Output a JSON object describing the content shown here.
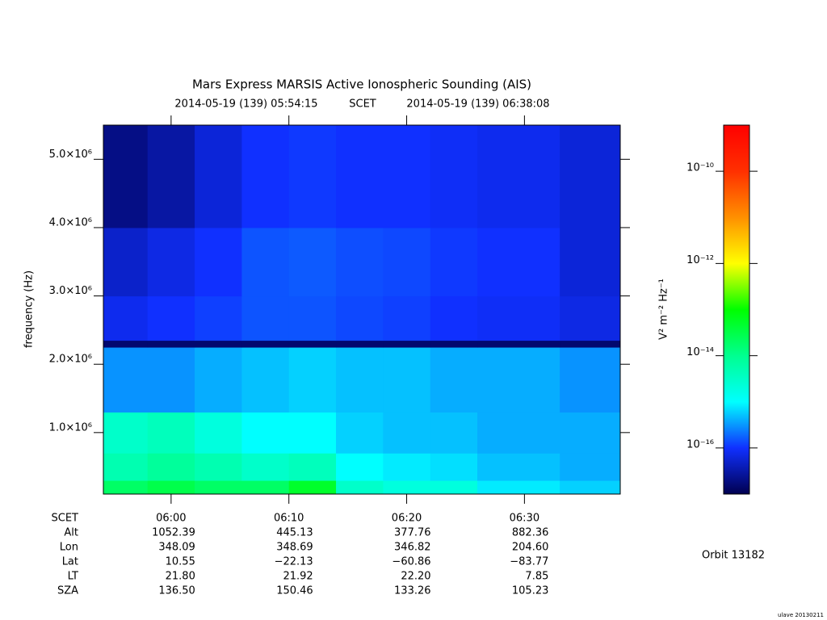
{
  "chart_data": {
    "type": "heatmap",
    "title": "Mars Express MARSIS Active Ionospheric Sounding (AIS)",
    "start_label": "2014-05-19 (139) 05:54:15",
    "time_system": "SCET",
    "end_label": "2014-05-19 (139) 06:38:08",
    "y_label": "frequency (Hz)",
    "colorbar_label": "V² m⁻² Hz⁻¹",
    "orbit": "Orbit 13182",
    "credit": "ulave 20130211",
    "xlim": [
      "05:54:15",
      "06:38:08"
    ],
    "xticks": [
      "06:00",
      "06:10",
      "06:20",
      "06:30"
    ],
    "ylim": [
      100000,
      5500000
    ],
    "yticks": [
      {
        "value": 1000000,
        "label": "1.0×10⁶"
      },
      {
        "value": 2000000,
        "label": "2.0×10⁶"
      },
      {
        "value": 3000000,
        "label": "3.0×10⁶"
      },
      {
        "value": 4000000,
        "label": "4.0×10⁶"
      },
      {
        "value": 5000000,
        "label": "5.0×10⁶"
      }
    ],
    "zlim": [
      1e-17,
      1e-09
    ],
    "zscale": "log",
    "zticks": [
      {
        "value": 1e-16,
        "label": "10⁻¹⁶"
      },
      {
        "value": 1e-14,
        "label": "10⁻¹⁴"
      },
      {
        "value": 1e-12,
        "label": "10⁻¹²"
      },
      {
        "value": 1e-10,
        "label": "10⁻¹⁰"
      }
    ],
    "colormap": [
      "#000050",
      "#1030ff",
      "#00ffff",
      "#00ff90",
      "#00ff00",
      "#ffff00",
      "#ff9000",
      "#ff3000",
      "#ff0000"
    ],
    "time_edges": [
      "05:54:15",
      "05:58:00",
      "06:02:00",
      "06:06:00",
      "06:10:00",
      "06:14:00",
      "06:18:00",
      "06:22:00",
      "06:26:00",
      "06:33:00",
      "06:38:08"
    ],
    "freq_edges": [
      100000,
      300000,
      700000,
      1300000,
      2250000,
      2350000,
      3000000,
      4000000,
      5500000
    ],
    "z": [
      [
        2e-14,
        3e-14,
        2e-14,
        2e-14,
        5e-14,
        3e-15,
        2e-15,
        2e-15,
        8e-16,
        6e-16
      ],
      [
        5e-15,
        8e-15,
        5e-15,
        3e-15,
        4e-15,
        1e-15,
        8e-16,
        7e-16,
        5e-16,
        4e-16
      ],
      [
        3e-15,
        4e-15,
        2e-15,
        1e-15,
        1e-15,
        6e-16,
        5e-16,
        5e-16,
        4e-16,
        4e-16
      ],
      [
        3e-16,
        3e-16,
        4e-16,
        5e-16,
        6e-16,
        5e-16,
        5e-16,
        4e-16,
        4e-16,
        3e-16
      ],
      [
        1.5e-17,
        1.5e-17,
        1.5e-17,
        1.5e-17,
        1.5e-17,
        1.5e-17,
        1.5e-17,
        1.5e-17,
        1.5e-17,
        1.5e-17
      ],
      [
        8e-17,
        1e-16,
        1.2e-16,
        1.5e-16,
        1.5e-16,
        1.3e-16,
        1.2e-16,
        1e-16,
        9e-17,
        7e-17
      ],
      [
        5e-17,
        7e-17,
        1e-16,
        1.5e-16,
        1.6e-16,
        1.4e-16,
        1.3e-16,
        1.1e-16,
        1e-16,
        6e-17
      ],
      [
        2e-17,
        3e-17,
        6e-17,
        1e-16,
        1.1e-16,
        1e-16,
        1e-16,
        9e-17,
        8e-17,
        6e-17
      ]
    ],
    "ephemeris": {
      "header": "SCET",
      "rows": [
        {
          "label": "Alt",
          "values": [
            "1052.39",
            "445.13",
            "377.76",
            "882.36"
          ]
        },
        {
          "label": "Lon",
          "values": [
            "348.09",
            "348.69",
            "346.82",
            "204.60"
          ]
        },
        {
          "label": "Lat",
          "values": [
            "10.55",
            "−22.13",
            "−60.86",
            "−83.77"
          ]
        },
        {
          "label": "LT",
          "values": [
            "21.80",
            "21.92",
            "22.20",
            "7.85"
          ]
        },
        {
          "label": "SZA",
          "values": [
            "136.50",
            "150.46",
            "133.26",
            "105.23"
          ]
        }
      ]
    }
  }
}
